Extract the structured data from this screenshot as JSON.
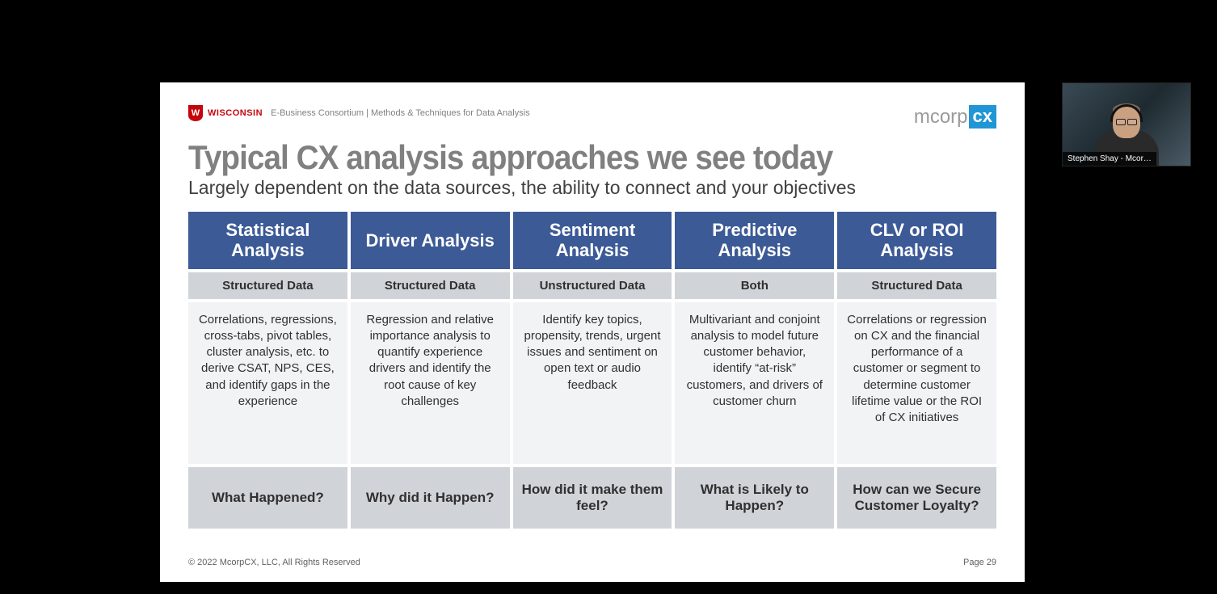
{
  "header": {
    "university_crest_letter": "W",
    "university_name": "WISCONSIN",
    "breadcrumb": "E-Business Consortium | Methods & Techniques for Data Analysis",
    "brand_logo_text": "mcorp",
    "brand_logo_box": "cx"
  },
  "title": "Typical CX analysis approaches we see today",
  "subtitle": "Largely dependent on the data sources, the ability to connect and your objectives",
  "table": {
    "columns": [
      {
        "heading": "Statistical Analysis",
        "data_type": "Structured Data",
        "description": "Correlations, regressions, cross-tabs, pivot tables, cluster analysis, etc. to derive CSAT, NPS, CES, and identify gaps in the experience",
        "question": "What Happened?"
      },
      {
        "heading": "Driver Analysis",
        "data_type": "Structured Data",
        "description": "Regression and relative importance analysis to quantify experience drivers and identify the root cause of key challenges",
        "question": "Why did it Happen?"
      },
      {
        "heading": "Sentiment Analysis",
        "data_type": "Unstructured Data",
        "description": "Identify key topics, propensity, trends, urgent issues and sentiment on open text or audio feedback",
        "question": "How did it make them feel?"
      },
      {
        "heading": "Predictive Analysis",
        "data_type": "Both",
        "description": "Multivariant and conjoint analysis to model future customer behavior, identify “at-risk” customers, and drivers of customer churn",
        "question": "What is Likely to Happen?"
      },
      {
        "heading": "CLV or ROI Analysis",
        "data_type": "Structured Data",
        "description": "Correlations or regression on CX and the financial performance of a customer or segment to determine customer lifetime value or the ROI of CX initiatives",
        "question": "How can we Secure Customer Loyalty?"
      }
    ],
    "colors": {
      "header_bg": "#3c5a96",
      "header_fg": "#ffffff",
      "subheader_bg": "#d0d3d8",
      "body_bg": "#f2f3f5",
      "question_bg": "#d0d3d8",
      "text": "#303030"
    }
  },
  "footer": {
    "copyright": "© 2022 McorpCX, LLC, All Rights Reserved",
    "page_label": "Page 29"
  },
  "webcam": {
    "speaker_label": "Stephen Shay - Mcor…"
  }
}
